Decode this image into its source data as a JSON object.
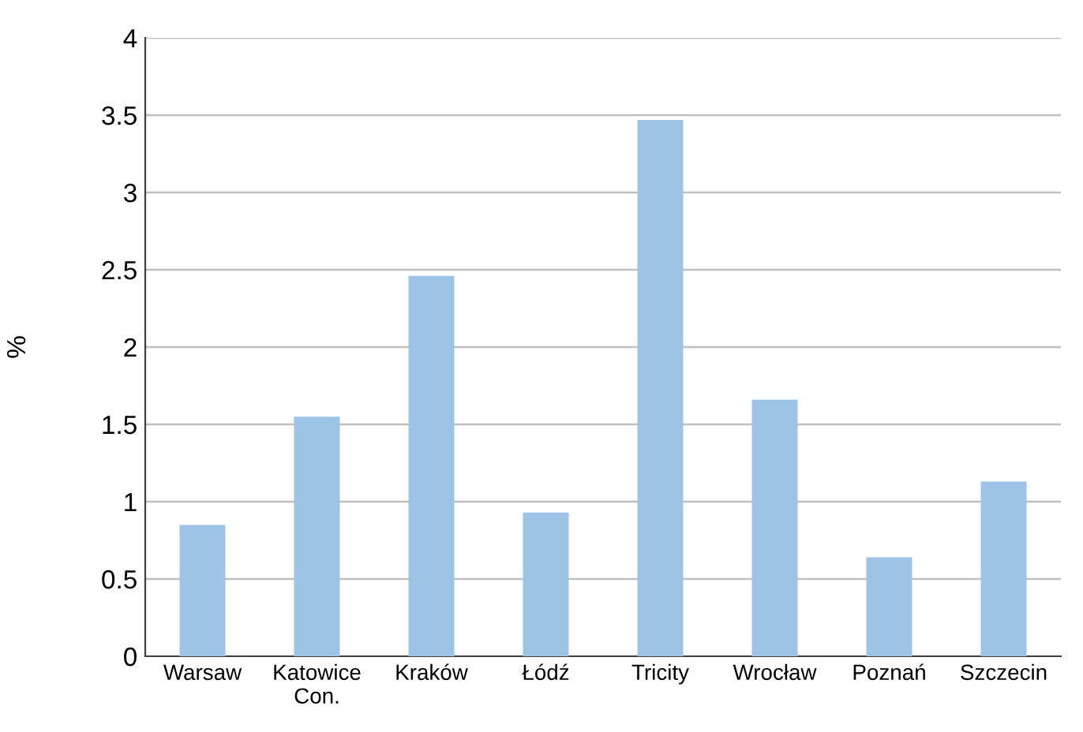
{
  "chart_data": {
    "type": "bar",
    "ylabel": "%",
    "categories": [
      "Warsaw",
      "Katowice\nCon.",
      "Kraków",
      "Łódź",
      "Tricity",
      "Wrocław",
      "Poznań",
      "Szczecin"
    ],
    "values": [
      0.85,
      1.55,
      2.46,
      0.93,
      3.47,
      1.66,
      0.64,
      1.13
    ],
    "color": "#9dc3e6",
    "ylim": [
      0,
      4
    ],
    "yticks": [
      0,
      0.5,
      1,
      1.5,
      2,
      2.5,
      3,
      3.5,
      4
    ],
    "grid": "y",
    "legend": false
  }
}
